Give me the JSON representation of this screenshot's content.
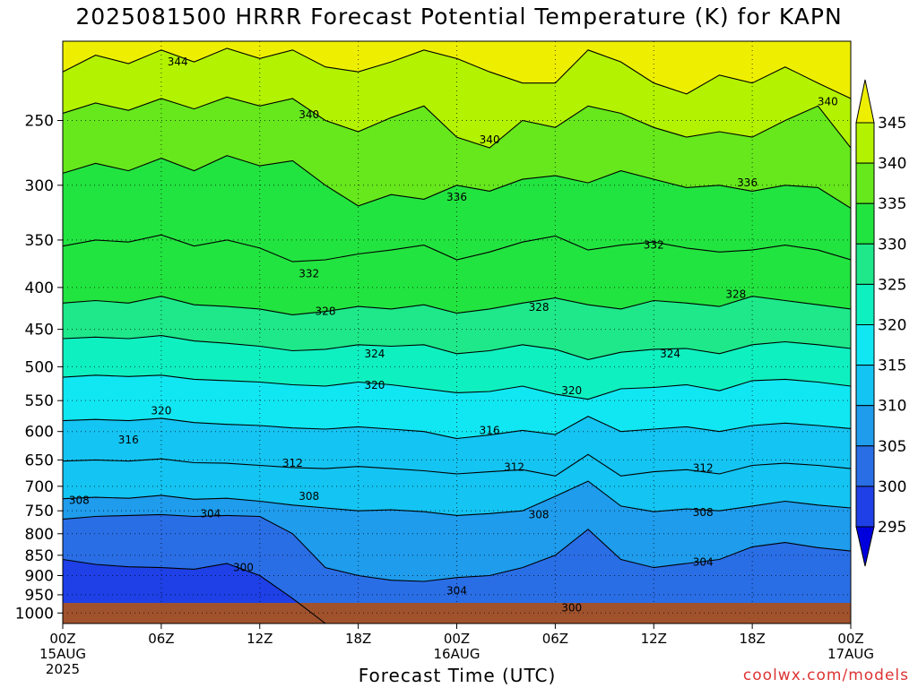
{
  "title": "2025081500 HRRR Forecast Potential Temperature (K) for KAPN",
  "credit": "coolwx.com/models",
  "chart_data": {
    "type": "heatmap",
    "title": "2025081500 HRRR Forecast Potential Temperature (K) for KAPN",
    "xlabel": "Forecast Time (UTC)",
    "ylabel": "",
    "x_range_hours": [
      0,
      48
    ],
    "y_scale": "log",
    "y_range_mb": [
      200,
      1030
    ],
    "grid": true,
    "y_ticks": [
      250,
      300,
      350,
      400,
      450,
      500,
      550,
      600,
      650,
      700,
      750,
      800,
      850,
      900,
      950,
      1000
    ],
    "x_ticks": [
      {
        "hour": 0,
        "label": "00Z",
        "date": "15AUG",
        "year": "2025"
      },
      {
        "hour": 6,
        "label": "06Z",
        "date": "",
        "year": ""
      },
      {
        "hour": 12,
        "label": "12Z",
        "date": "",
        "year": ""
      },
      {
        "hour": 18,
        "label": "18Z",
        "date": "",
        "year": ""
      },
      {
        "hour": 24,
        "label": "00Z",
        "date": "16AUG",
        "year": ""
      },
      {
        "hour": 30,
        "label": "06Z",
        "date": "",
        "year": ""
      },
      {
        "hour": 36,
        "label": "12Z",
        "date": "",
        "year": ""
      },
      {
        "hour": 42,
        "label": "18Z",
        "date": "",
        "year": ""
      },
      {
        "hour": 48,
        "label": "00Z",
        "date": "17AUG",
        "year": ""
      }
    ],
    "colorbar": {
      "levels": [
        295,
        300,
        305,
        310,
        315,
        320,
        325,
        330,
        335,
        340,
        345
      ],
      "colors": [
        "#0000dd",
        "#1e40e6",
        "#2a6ee6",
        "#1f9cec",
        "#14c4f2",
        "#11e7f2",
        "#0ff0c0",
        "#1ee88a",
        "#22e440",
        "#66e81c",
        "#b3f200",
        "#eeef00"
      ]
    },
    "contour_labels": [
      {
        "value": 344,
        "h": 7,
        "p": 212
      },
      {
        "value": 340,
        "h": 15,
        "p": 246
      },
      {
        "value": 340,
        "h": 26,
        "p": 264
      },
      {
        "value": 340,
        "h": 46.6,
        "p": 237
      },
      {
        "value": 336,
        "h": 24,
        "p": 310
      },
      {
        "value": 336,
        "h": 41.7,
        "p": 298
      },
      {
        "value": 332,
        "h": 15,
        "p": 385
      },
      {
        "value": 332,
        "h": 36,
        "p": 355
      },
      {
        "value": 328,
        "h": 16,
        "p": 428
      },
      {
        "value": 328,
        "h": 29,
        "p": 423
      },
      {
        "value": 328,
        "h": 41,
        "p": 408
      },
      {
        "value": 324,
        "h": 19,
        "p": 482
      },
      {
        "value": 324,
        "h": 37,
        "p": 482
      },
      {
        "value": 320,
        "h": 19,
        "p": 527
      },
      {
        "value": 320,
        "h": 31,
        "p": 535
      },
      {
        "value": 320,
        "h": 6,
        "p": 566
      },
      {
        "value": 316,
        "h": 4,
        "p": 614
      },
      {
        "value": 316,
        "h": 26,
        "p": 598
      },
      {
        "value": 312,
        "h": 14,
        "p": 656
      },
      {
        "value": 312,
        "h": 27.5,
        "p": 663
      },
      {
        "value": 312,
        "h": 39,
        "p": 665
      },
      {
        "value": 308,
        "h": 1,
        "p": 728
      },
      {
        "value": 308,
        "h": 15,
        "p": 720
      },
      {
        "value": 308,
        "h": 29,
        "p": 758
      },
      {
        "value": 308,
        "h": 39,
        "p": 753
      },
      {
        "value": 304,
        "h": 9,
        "p": 756
      },
      {
        "value": 304,
        "h": 24,
        "p": 940
      },
      {
        "value": 304,
        "h": 39,
        "p": 867
      },
      {
        "value": 300,
        "h": 11,
        "p": 880
      },
      {
        "value": 300,
        "h": 31,
        "p": 985
      }
    ],
    "isentropes": [
      {
        "value": 344,
        "p": [
          218,
          208,
          213,
          205,
          212,
          204,
          210,
          205,
          215,
          218,
          212,
          205,
          210,
          218,
          225,
          225,
          205,
          212,
          225,
          232,
          220,
          225,
          215,
          225,
          235
        ]
      },
      {
        "value": 340,
        "p": [
          245,
          238,
          243,
          235,
          242,
          234,
          240,
          235,
          250,
          258,
          248,
          240,
          262,
          270,
          250,
          255,
          240,
          245,
          255,
          262,
          258,
          262,
          250,
          240,
          270
        ]
      },
      {
        "value": 336,
        "p": [
          290,
          282,
          288,
          278,
          288,
          276,
          284,
          280,
          300,
          318,
          308,
          312,
          300,
          305,
          295,
          292,
          298,
          288,
          295,
          302,
          300,
          305,
          300,
          302,
          320
        ]
      },
      {
        "value": 332,
        "p": [
          356,
          350,
          352,
          345,
          356,
          350,
          358,
          372,
          370,
          364,
          360,
          355,
          370,
          362,
          352,
          346,
          360,
          355,
          352,
          358,
          362,
          360,
          355,
          360,
          370
        ]
      },
      {
        "value": 328,
        "p": [
          418,
          415,
          418,
          410,
          420,
          422,
          425,
          432,
          428,
          422,
          425,
          420,
          430,
          425,
          418,
          412,
          420,
          425,
          415,
          418,
          422,
          410,
          415,
          420,
          425
        ]
      },
      {
        "value": 324,
        "p": [
          462,
          460,
          462,
          458,
          465,
          468,
          472,
          478,
          476,
          470,
          472,
          470,
          482,
          478,
          470,
          476,
          490,
          480,
          476,
          475,
          482,
          470,
          466,
          470,
          475
        ]
      },
      {
        "value": 320,
        "p": [
          515,
          512,
          514,
          512,
          518,
          520,
          522,
          526,
          528,
          522,
          526,
          532,
          538,
          536,
          528,
          540,
          548,
          532,
          530,
          526,
          535,
          520,
          518,
          522,
          528
        ]
      },
      {
        "value": 316,
        "p": [
          582,
          580,
          582,
          578,
          585,
          588,
          590,
          594,
          596,
          592,
          596,
          600,
          612,
          606,
          598,
          605,
          575,
          600,
          596,
          592,
          600,
          590,
          586,
          590,
          595
        ]
      },
      {
        "value": 312,
        "p": [
          652,
          650,
          652,
          648,
          655,
          656,
          660,
          664,
          666,
          662,
          666,
          670,
          676,
          672,
          668,
          680,
          640,
          680,
          672,
          668,
          676,
          660,
          656,
          660,
          666
        ]
      },
      {
        "value": 308,
        "p": [
          725,
          722,
          724,
          718,
          726,
          724,
          730,
          738,
          744,
          750,
          748,
          752,
          760,
          756,
          750,
          720,
          690,
          740,
          752,
          746,
          750,
          740,
          730,
          738,
          744
        ]
      },
      {
        "value": 304,
        "p": [
          768,
          762,
          760,
          758,
          762,
          760,
          762,
          800,
          880,
          900,
          912,
          915,
          905,
          900,
          880,
          850,
          790,
          860,
          880,
          870,
          860,
          830,
          820,
          832,
          840
        ]
      },
      {
        "value": 300,
        "p": [
          860,
          872,
          878,
          880,
          884,
          870,
          900,
          960,
          1030,
          1030,
          1030,
          1030,
          1030,
          1030,
          1030,
          1030,
          1030,
          1030,
          1030,
          1030,
          1030,
          1030,
          1030,
          1030,
          1030
        ]
      }
    ]
  }
}
